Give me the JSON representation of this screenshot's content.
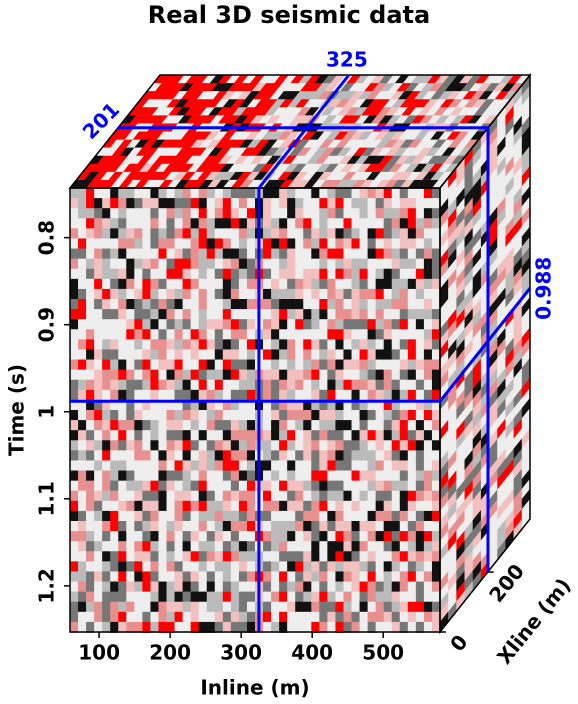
{
  "chart_data": {
    "type": "seismic-cube",
    "title": "Real 3D seismic data",
    "x_label": "Inline (m)",
    "y_label": "Time (s)",
    "z_label": "Xline (m)",
    "xlim": [
      59,
      580
    ],
    "xticks": [
      100,
      200,
      300,
      400,
      500
    ],
    "ylim": [
      0.743,
      1.253
    ],
    "yticks": [
      0.8,
      0.9,
      1,
      1.1,
      1.2
    ],
    "zlim": [
      0,
      377
    ],
    "zticks": [
      0,
      200
    ],
    "slices": {
      "inline": 325,
      "xline": 201,
      "time": 0.988
    },
    "slice_color": "#0000ff"
  }
}
